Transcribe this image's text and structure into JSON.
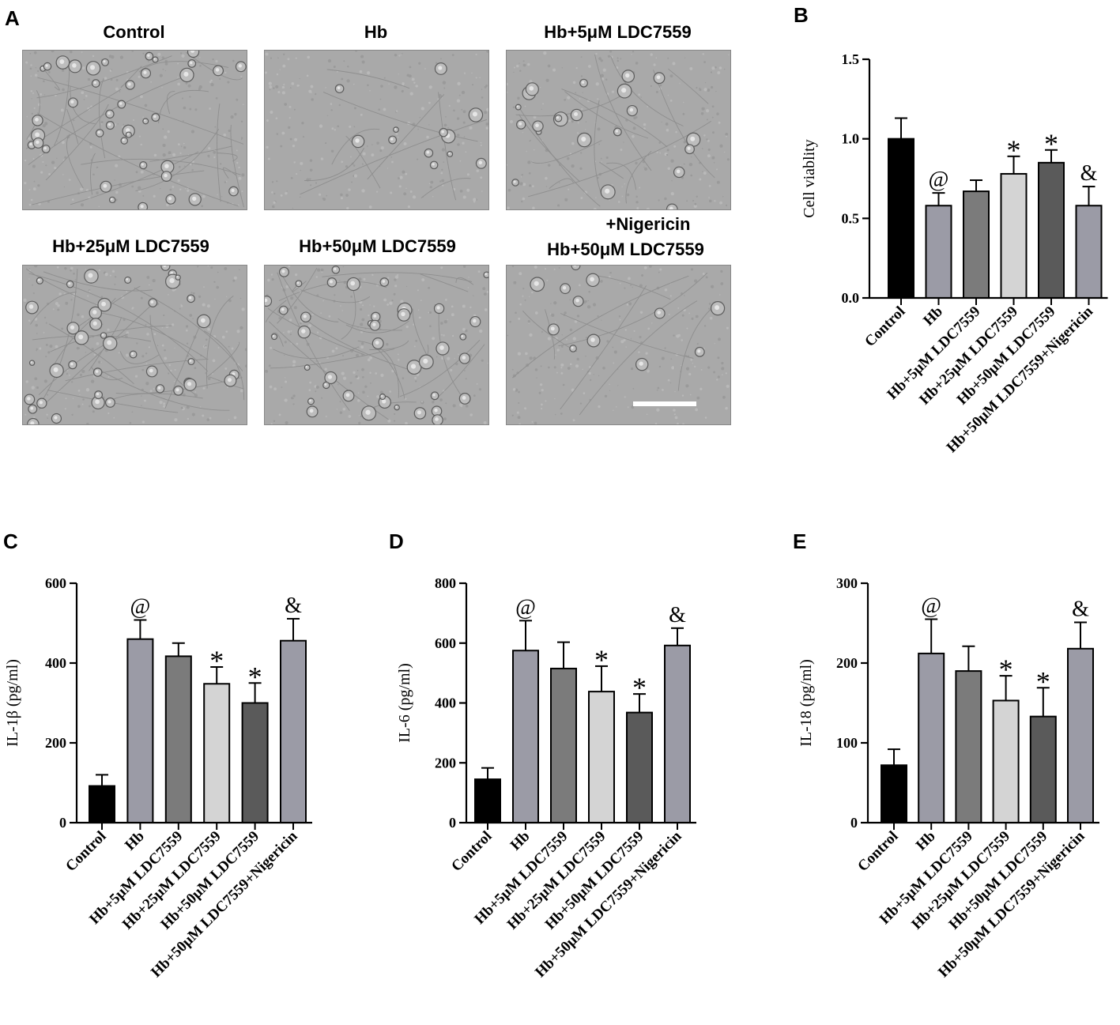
{
  "panels": {
    "a": {
      "letter": "A"
    },
    "b": {
      "letter": "B"
    },
    "c": {
      "letter": "C"
    },
    "d": {
      "letter": "D"
    },
    "e": {
      "letter": "E"
    }
  },
  "micrographs": [
    {
      "label": "Control",
      "density": "high"
    },
    {
      "label": "Hb",
      "density": "low"
    },
    {
      "label": "Hb+5μM LDC7559",
      "density": "medium"
    },
    {
      "label": "Hb+25μM LDC7559",
      "density": "high"
    },
    {
      "label": "Hb+50μM LDC7559",
      "density": "high"
    },
    {
      "label_line1": "+Nigericin",
      "label_line2": "Hb+50μM LDC7559",
      "density": "low",
      "scale_bar": true
    }
  ],
  "colors": {
    "control": "#000000",
    "hb": "#9b9ba6",
    "hb5": "#7b7b7b",
    "hb25": "#d4d4d4",
    "hb50": "#5a5a5a",
    "hb50nig": "#9b9ba6"
  },
  "chart_data": [
    {
      "id": "b",
      "type": "bar",
      "ylabel": "Cell viablity",
      "ylim": [
        0,
        1.5
      ],
      "yticks": [
        "0.0",
        "0.5",
        "1.0",
        "1.5"
      ],
      "categories": [
        "Control",
        "Hb",
        "Hb+5μM LDC7559",
        "Hb+25μM LDC7559",
        "Hb+50μM LDC7559",
        "Hb+50μM LDC7559+Nigericin"
      ],
      "values": [
        1.0,
        0.58,
        0.67,
        0.78,
        0.85,
        0.58
      ],
      "errors": [
        0.13,
        0.08,
        0.07,
        0.11,
        0.08,
        0.12
      ],
      "annotations": [
        "",
        "@",
        "",
        "*",
        "*",
        "&"
      ]
    },
    {
      "id": "c",
      "type": "bar",
      "ylabel": "IL-1β (pg/ml)",
      "ylim": [
        0,
        600
      ],
      "yticks": [
        "0",
        "200",
        "400",
        "600"
      ],
      "categories": [
        "Control",
        "Hb",
        "Hb+5μM LDC7559",
        "Hb+25μM LDC7559",
        "Hb+50μM LDC7559",
        "Hb+50μM LDC7559+Nigericin"
      ],
      "values": [
        92,
        460,
        417,
        348,
        300,
        456
      ],
      "errors": [
        28,
        48,
        33,
        42,
        50,
        55
      ],
      "annotations": [
        "",
        "@",
        "",
        "*",
        "*",
        "&"
      ]
    },
    {
      "id": "d",
      "type": "bar",
      "ylabel": "IL-6 (pg/ml)",
      "ylim": [
        0,
        800
      ],
      "yticks": [
        "0",
        "200",
        "400",
        "600",
        "800"
      ],
      "categories": [
        "Control",
        "Hb",
        "Hb+5μM LDC7559",
        "Hb+25μM LDC7559",
        "Hb+50μM LDC7559",
        "Hb+50μM LDC7559+Nigericin"
      ],
      "values": [
        145,
        575,
        515,
        438,
        368,
        592
      ],
      "errors": [
        38,
        100,
        88,
        85,
        62,
        58
      ],
      "annotations": [
        "",
        "@",
        "",
        "*",
        "*",
        "&"
      ]
    },
    {
      "id": "e",
      "type": "bar",
      "ylabel": "IL-18 (pg/ml)",
      "ylim": [
        0,
        300
      ],
      "yticks": [
        "0",
        "100",
        "200",
        "300"
      ],
      "categories": [
        "Control",
        "Hb",
        "Hb+5μM LDC7559",
        "Hb+25μM LDC7559",
        "Hb+50μM LDC7559",
        "Hb+50μM LDC7559+Nigericin"
      ],
      "values": [
        72,
        212,
        190,
        153,
        133,
        218
      ],
      "errors": [
        20,
        43,
        31,
        31,
        36,
        33
      ],
      "annotations": [
        "",
        "@",
        "",
        "*",
        "*",
        "&"
      ]
    }
  ]
}
